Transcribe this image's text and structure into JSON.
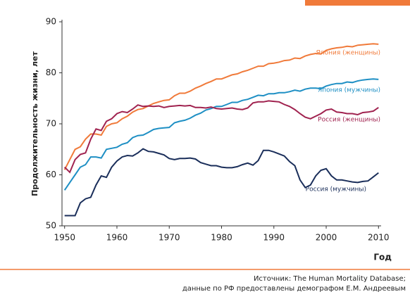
{
  "chart_data": {
    "type": "line",
    "y_label": "Продолжительность жизни, лет",
    "x_label": "Год",
    "source": [
      "Источник: The Human Mortality Database;",
      "данные по РФ предоставлены демографом Е.М. Андреевым"
    ],
    "x": [
      1950,
      1951,
      1952,
      1953,
      1954,
      1955,
      1956,
      1957,
      1958,
      1959,
      1960,
      1961,
      1962,
      1963,
      1964,
      1965,
      1966,
      1967,
      1968,
      1969,
      1970,
      1971,
      1972,
      1973,
      1974,
      1975,
      1976,
      1977,
      1978,
      1979,
      1980,
      1981,
      1982,
      1983,
      1984,
      1985,
      1986,
      1987,
      1988,
      1989,
      1990,
      1991,
      1992,
      1993,
      1994,
      1995,
      1996,
      1997,
      1998,
      1999,
      2000,
      2001,
      2002,
      2003,
      2004,
      2005,
      2006,
      2007,
      2008,
      2009,
      2010
    ],
    "series": [
      {
        "name": "Япония (женщины)",
        "color": "#f07a3a",
        "values": [
          61,
          63,
          65,
          65.5,
          67,
          68,
          68,
          67.8,
          69.5,
          70,
          70.2,
          71,
          71.5,
          72.3,
          72.8,
          73,
          73.5,
          74,
          74.3,
          74.6,
          74.7,
          75.5,
          76,
          76,
          76.4,
          77,
          77.4,
          77.9,
          78.3,
          78.8,
          78.8,
          79.2,
          79.6,
          79.8,
          80.2,
          80.5,
          80.9,
          81.3,
          81.3,
          81.8,
          81.9,
          82.1,
          82.4,
          82.5,
          82.9,
          82.8,
          83.3,
          83.6,
          83.8,
          83.7,
          84.4,
          84.7,
          84.9,
          85,
          85.2,
          85.1,
          85.4,
          85.5,
          85.6,
          85.7,
          85.6
        ]
      },
      {
        "name": "Япония (мужчины)",
        "color": "#1e8fc4",
        "values": [
          57,
          58.5,
          60,
          61.5,
          62,
          63.5,
          63.5,
          63.3,
          65,
          65.2,
          65.4,
          66,
          66.3,
          67.3,
          67.7,
          67.8,
          68.3,
          68.9,
          69.1,
          69.2,
          69.3,
          70.2,
          70.5,
          70.7,
          71.1,
          71.7,
          72.1,
          72.7,
          73,
          73.4,
          73.4,
          73.8,
          74.2,
          74.2,
          74.6,
          74.8,
          75.2,
          75.6,
          75.5,
          75.9,
          75.9,
          76.1,
          76.1,
          76.3,
          76.6,
          76.4,
          76.8,
          77,
          77,
          76.9,
          77.4,
          77.7,
          77.9,
          77.9,
          78.2,
          78.1,
          78.4,
          78.6,
          78.7,
          78.8,
          78.7
        ]
      },
      {
        "name": "Россия (женщины)",
        "color": "#a0224f",
        "values": [
          61.5,
          60.5,
          63,
          64,
          64.3,
          67,
          69,
          68.7,
          70.5,
          71,
          72,
          72.4,
          72.2,
          72.9,
          73.7,
          73.4,
          73.5,
          73.4,
          73.5,
          73.2,
          73.4,
          73.5,
          73.6,
          73.5,
          73.6,
          73.2,
          73.2,
          73.1,
          73.3,
          73,
          72.9,
          73,
          73.1,
          72.9,
          72.8,
          73.1,
          74.1,
          74.3,
          74.3,
          74.5,
          74.4,
          74.3,
          73.8,
          73.4,
          72.8,
          72,
          71.3,
          71,
          71.5,
          72,
          72.7,
          72.9,
          72.3,
          72.2,
          72,
          72,
          71.8,
          72.2,
          72.3,
          72.5,
          73.2
        ]
      },
      {
        "name": "Россия (мужчины)",
        "color": "#1a2e5a",
        "values": [
          52,
          52,
          52,
          54.5,
          55.3,
          55.6,
          58,
          59.8,
          59.5,
          61.5,
          62.7,
          63.5,
          63.8,
          63.7,
          64.3,
          65.1,
          64.6,
          64.5,
          64.2,
          63.9,
          63.2,
          63,
          63.2,
          63.2,
          63.3,
          63.1,
          62.4,
          62.1,
          61.8,
          61.8,
          61.5,
          61.4,
          61.4,
          61.6,
          62,
          62.3,
          61.9,
          62.8,
          64.8,
          64.8,
          64.5,
          64.1,
          63.7,
          62.6,
          61.8,
          59,
          57.5,
          58,
          59.8,
          60.9,
          61.2,
          59.8,
          59,
          59,
          58.8,
          58.6,
          58.5,
          58.7,
          58.8,
          59.6,
          60.4
        ]
      }
    ],
    "xlim": [
      1949.5,
      2010.5
    ],
    "xticks": [
      1950,
      1960,
      1970,
      1980,
      1990,
      2000,
      2010
    ],
    "ylim": [
      50,
      90
    ],
    "yticks": [
      50,
      60,
      70,
      80,
      90
    ]
  }
}
